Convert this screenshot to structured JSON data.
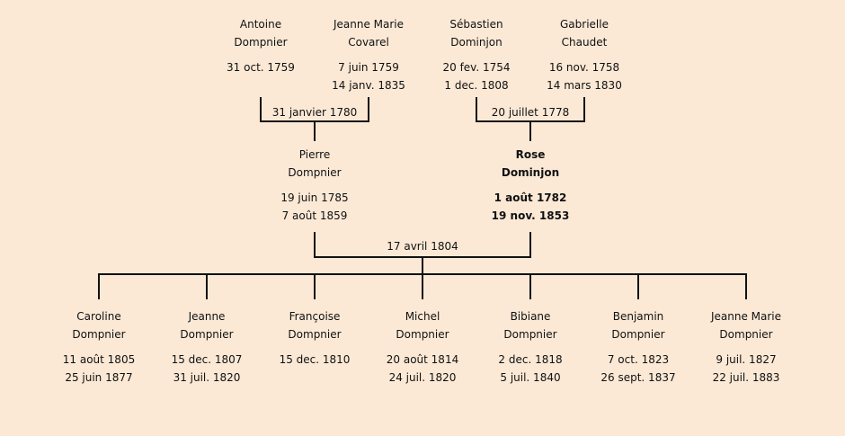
{
  "grandparents": [
    {
      "first": "Antoine",
      "last": "Dompnier",
      "birth": "31 oct. 1759",
      "death": ""
    },
    {
      "first": "Jeanne Marie",
      "last": "Covarel",
      "birth": "7 juin 1759",
      "death": "14 janv. 1835"
    },
    {
      "first": "Sébastien",
      "last": "Dominjon",
      "birth": "20 fev. 1754",
      "death": "1 dec. 1808"
    },
    {
      "first": "Gabrielle",
      "last": "Chaudet",
      "birth": "16 nov. 1758",
      "death": "14 mars 1830"
    }
  ],
  "marriages": {
    "paternal": "31 janvier 1780",
    "maternal": "20 juillet 1778",
    "parents": "17 avril 1804"
  },
  "parents": [
    {
      "first": "Pierre",
      "last": "Dompnier",
      "birth": "19 juin 1785",
      "death": "7 août 1859"
    },
    {
      "first": "Rose",
      "last": "Dominjon",
      "birth": "1 août 1782",
      "death": "19 nov. 1853"
    }
  ],
  "children": [
    {
      "first": "Caroline",
      "last": "Dompnier",
      "birth": "11 août 1805",
      "death": "25 juin 1877"
    },
    {
      "first": "Jeanne",
      "last": "Dompnier",
      "birth": "15 dec. 1807",
      "death": "31 juil. 1820"
    },
    {
      "first": "Françoise",
      "last": "Dompnier",
      "birth": "15 dec. 1810",
      "death": ""
    },
    {
      "first": "Michel",
      "last": "Dompnier",
      "birth": "20 août 1814",
      "death": "24 juil. 1820"
    },
    {
      "first": "Bibiane",
      "last": "Dompnier",
      "birth": "2 dec. 1818",
      "death": "5 juil. 1840"
    },
    {
      "first": "Benjamin",
      "last": "Dompnier",
      "birth": "7 oct. 1823",
      "death": "26 sept. 1837"
    },
    {
      "first": "Jeanne Marie",
      "last": "Dompnier",
      "birth": "9 juil. 1827",
      "death": "22 juil. 1883"
    }
  ]
}
